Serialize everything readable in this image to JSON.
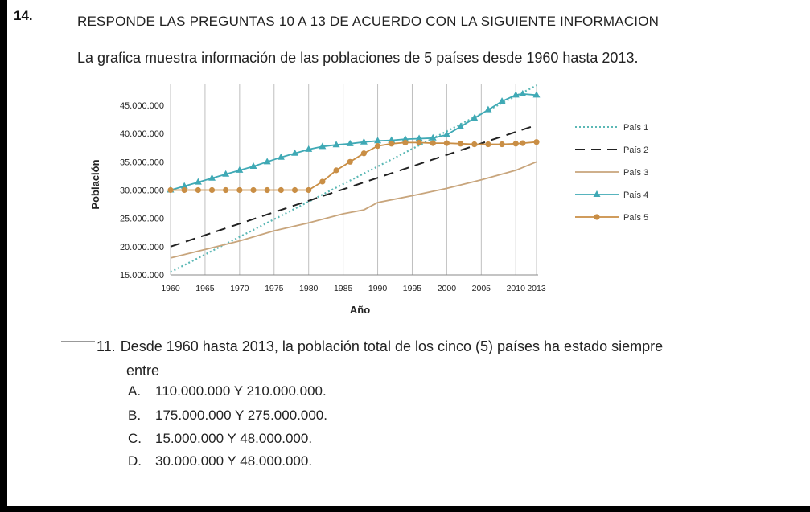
{
  "question": {
    "number": "14.",
    "heading": "RESPONDE LAS PREGUNTAS 10 A 13 DE ACUERDO CON LA SIGUIENTE INFORMACION",
    "intro": "La grafica muestra información de las poblaciones de 5 países desde 1960 hasta 2013."
  },
  "chart_data": {
    "type": "line",
    "xlabel": "Año",
    "ylabel": "Población",
    "xlim": [
      1960,
      2013
    ],
    "ylim": [
      15000000,
      48000000
    ],
    "x_ticks": [
      1960,
      1965,
      1970,
      1975,
      1980,
      1985,
      1990,
      1995,
      2000,
      2005,
      2010,
      2013
    ],
    "x_tick_labels": [
      "1960",
      "1965",
      "1970",
      "1975",
      "1980",
      "1985",
      "1990",
      "1995",
      "2000",
      "2005",
      "2010",
      "2013"
    ],
    "y_ticks": [
      15000000,
      20000000,
      25000000,
      30000000,
      35000000,
      40000000,
      45000000
    ],
    "y_tick_labels": [
      "15.000.000",
      "20.000.000",
      "25.000.000",
      "30.000.000",
      "35.000.000",
      "40.000.000",
      "45.000.000"
    ],
    "legend_position": "right",
    "series": [
      {
        "name": "País 1",
        "style": "dotted",
        "color": "#5bb8b5",
        "x": [
          1960,
          2013
        ],
        "values": [
          15500000,
          48500000
        ]
      },
      {
        "name": "País 2",
        "style": "dashed",
        "color": "#222222",
        "x": [
          1960,
          2013
        ],
        "values": [
          20000000,
          41500000
        ]
      },
      {
        "name": "País 3",
        "style": "solid",
        "color": "#c8a57c",
        "x": [
          1960,
          1965,
          1970,
          1975,
          1980,
          1985,
          1988,
          1990,
          1995,
          2000,
          2005,
          2010,
          2013
        ],
        "values": [
          18000000,
          19500000,
          21000000,
          22800000,
          24200000,
          25800000,
          26500000,
          27800000,
          29000000,
          30300000,
          31800000,
          33500000,
          35000000
        ]
      },
      {
        "name": "País 4",
        "style": "solid-triangle",
        "color": "#3fa9b5",
        "x": [
          1960,
          1962,
          1964,
          1966,
          1968,
          1970,
          1972,
          1974,
          1976,
          1978,
          1980,
          1982,
          1984,
          1986,
          1988,
          1990,
          1992,
          1994,
          1996,
          1998,
          2000,
          2002,
          2004,
          2006,
          2008,
          2010,
          2011,
          2013
        ],
        "values": [
          30000000,
          30700000,
          31400000,
          32100000,
          32800000,
          33500000,
          34200000,
          35000000,
          35800000,
          36500000,
          37200000,
          37700000,
          38000000,
          38200000,
          38500000,
          38700000,
          38800000,
          39000000,
          39100000,
          39200000,
          39800000,
          41200000,
          42700000,
          44200000,
          45700000,
          46800000,
          47000000,
          46800000
        ]
      },
      {
        "name": "País 5",
        "style": "solid-circle",
        "color": "#c98e45",
        "x": [
          1960,
          1962,
          1964,
          1966,
          1968,
          1970,
          1972,
          1974,
          1976,
          1978,
          1980,
          1982,
          1984,
          1986,
          1988,
          1990,
          1992,
          1994,
          1996,
          1998,
          2000,
          2002,
          2004,
          2006,
          2008,
          2010,
          2011,
          2013
        ],
        "values": [
          30000000,
          30000000,
          30000000,
          30000000,
          30000000,
          30000000,
          30000000,
          30000000,
          30000000,
          30000000,
          30000000,
          31500000,
          33500000,
          35000000,
          36500000,
          37800000,
          38200000,
          38400000,
          38400000,
          38300000,
          38300000,
          38200000,
          38100000,
          38100000,
          38100000,
          38200000,
          38300000,
          38500000
        ]
      }
    ]
  },
  "q11": {
    "number": "11.",
    "text_line1": "Desde 1960 hasta 2013, la población total de los cinco (5) países ha estado siempre",
    "text_line2": "entre",
    "options": [
      {
        "letter": "A.",
        "text": "110.000.000 Y 210.000.000."
      },
      {
        "letter": "B.",
        "text": "175.000.000 Y 275.000.000."
      },
      {
        "letter": "C.",
        "text": "15.000.000 Y 48.000.000."
      },
      {
        "letter": "D.",
        "text": "30.000.000 Y 48.000.000."
      }
    ]
  }
}
